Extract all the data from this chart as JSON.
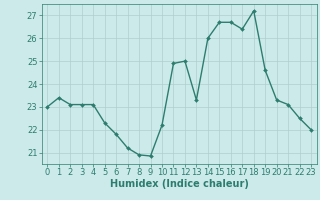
{
  "x": [
    0,
    1,
    2,
    3,
    4,
    5,
    6,
    7,
    8,
    9,
    10,
    11,
    12,
    13,
    14,
    15,
    16,
    17,
    18,
    19,
    20,
    21,
    22,
    23
  ],
  "y": [
    23.0,
    23.4,
    23.1,
    23.1,
    23.1,
    22.3,
    21.8,
    21.2,
    20.9,
    20.85,
    22.2,
    24.9,
    25.0,
    23.3,
    26.0,
    26.7,
    26.7,
    26.4,
    27.2,
    24.6,
    23.3,
    23.1,
    22.5,
    22.0
  ],
  "line_color": "#2d7d6e",
  "marker": "D",
  "marker_size": 2.0,
  "bg_color": "#cceaea",
  "grid_color": "#b0cece",
  "xlabel": "Humidex (Indice chaleur)",
  "xlim": [
    -0.5,
    23.5
  ],
  "ylim": [
    20.5,
    27.5
  ],
  "yticks": [
    21,
    22,
    23,
    24,
    25,
    26,
    27
  ],
  "xticks": [
    0,
    1,
    2,
    3,
    4,
    5,
    6,
    7,
    8,
    9,
    10,
    11,
    12,
    13,
    14,
    15,
    16,
    17,
    18,
    19,
    20,
    21,
    22,
    23
  ],
  "xlabel_fontsize": 7,
  "tick_fontsize": 6,
  "line_width": 1.0
}
